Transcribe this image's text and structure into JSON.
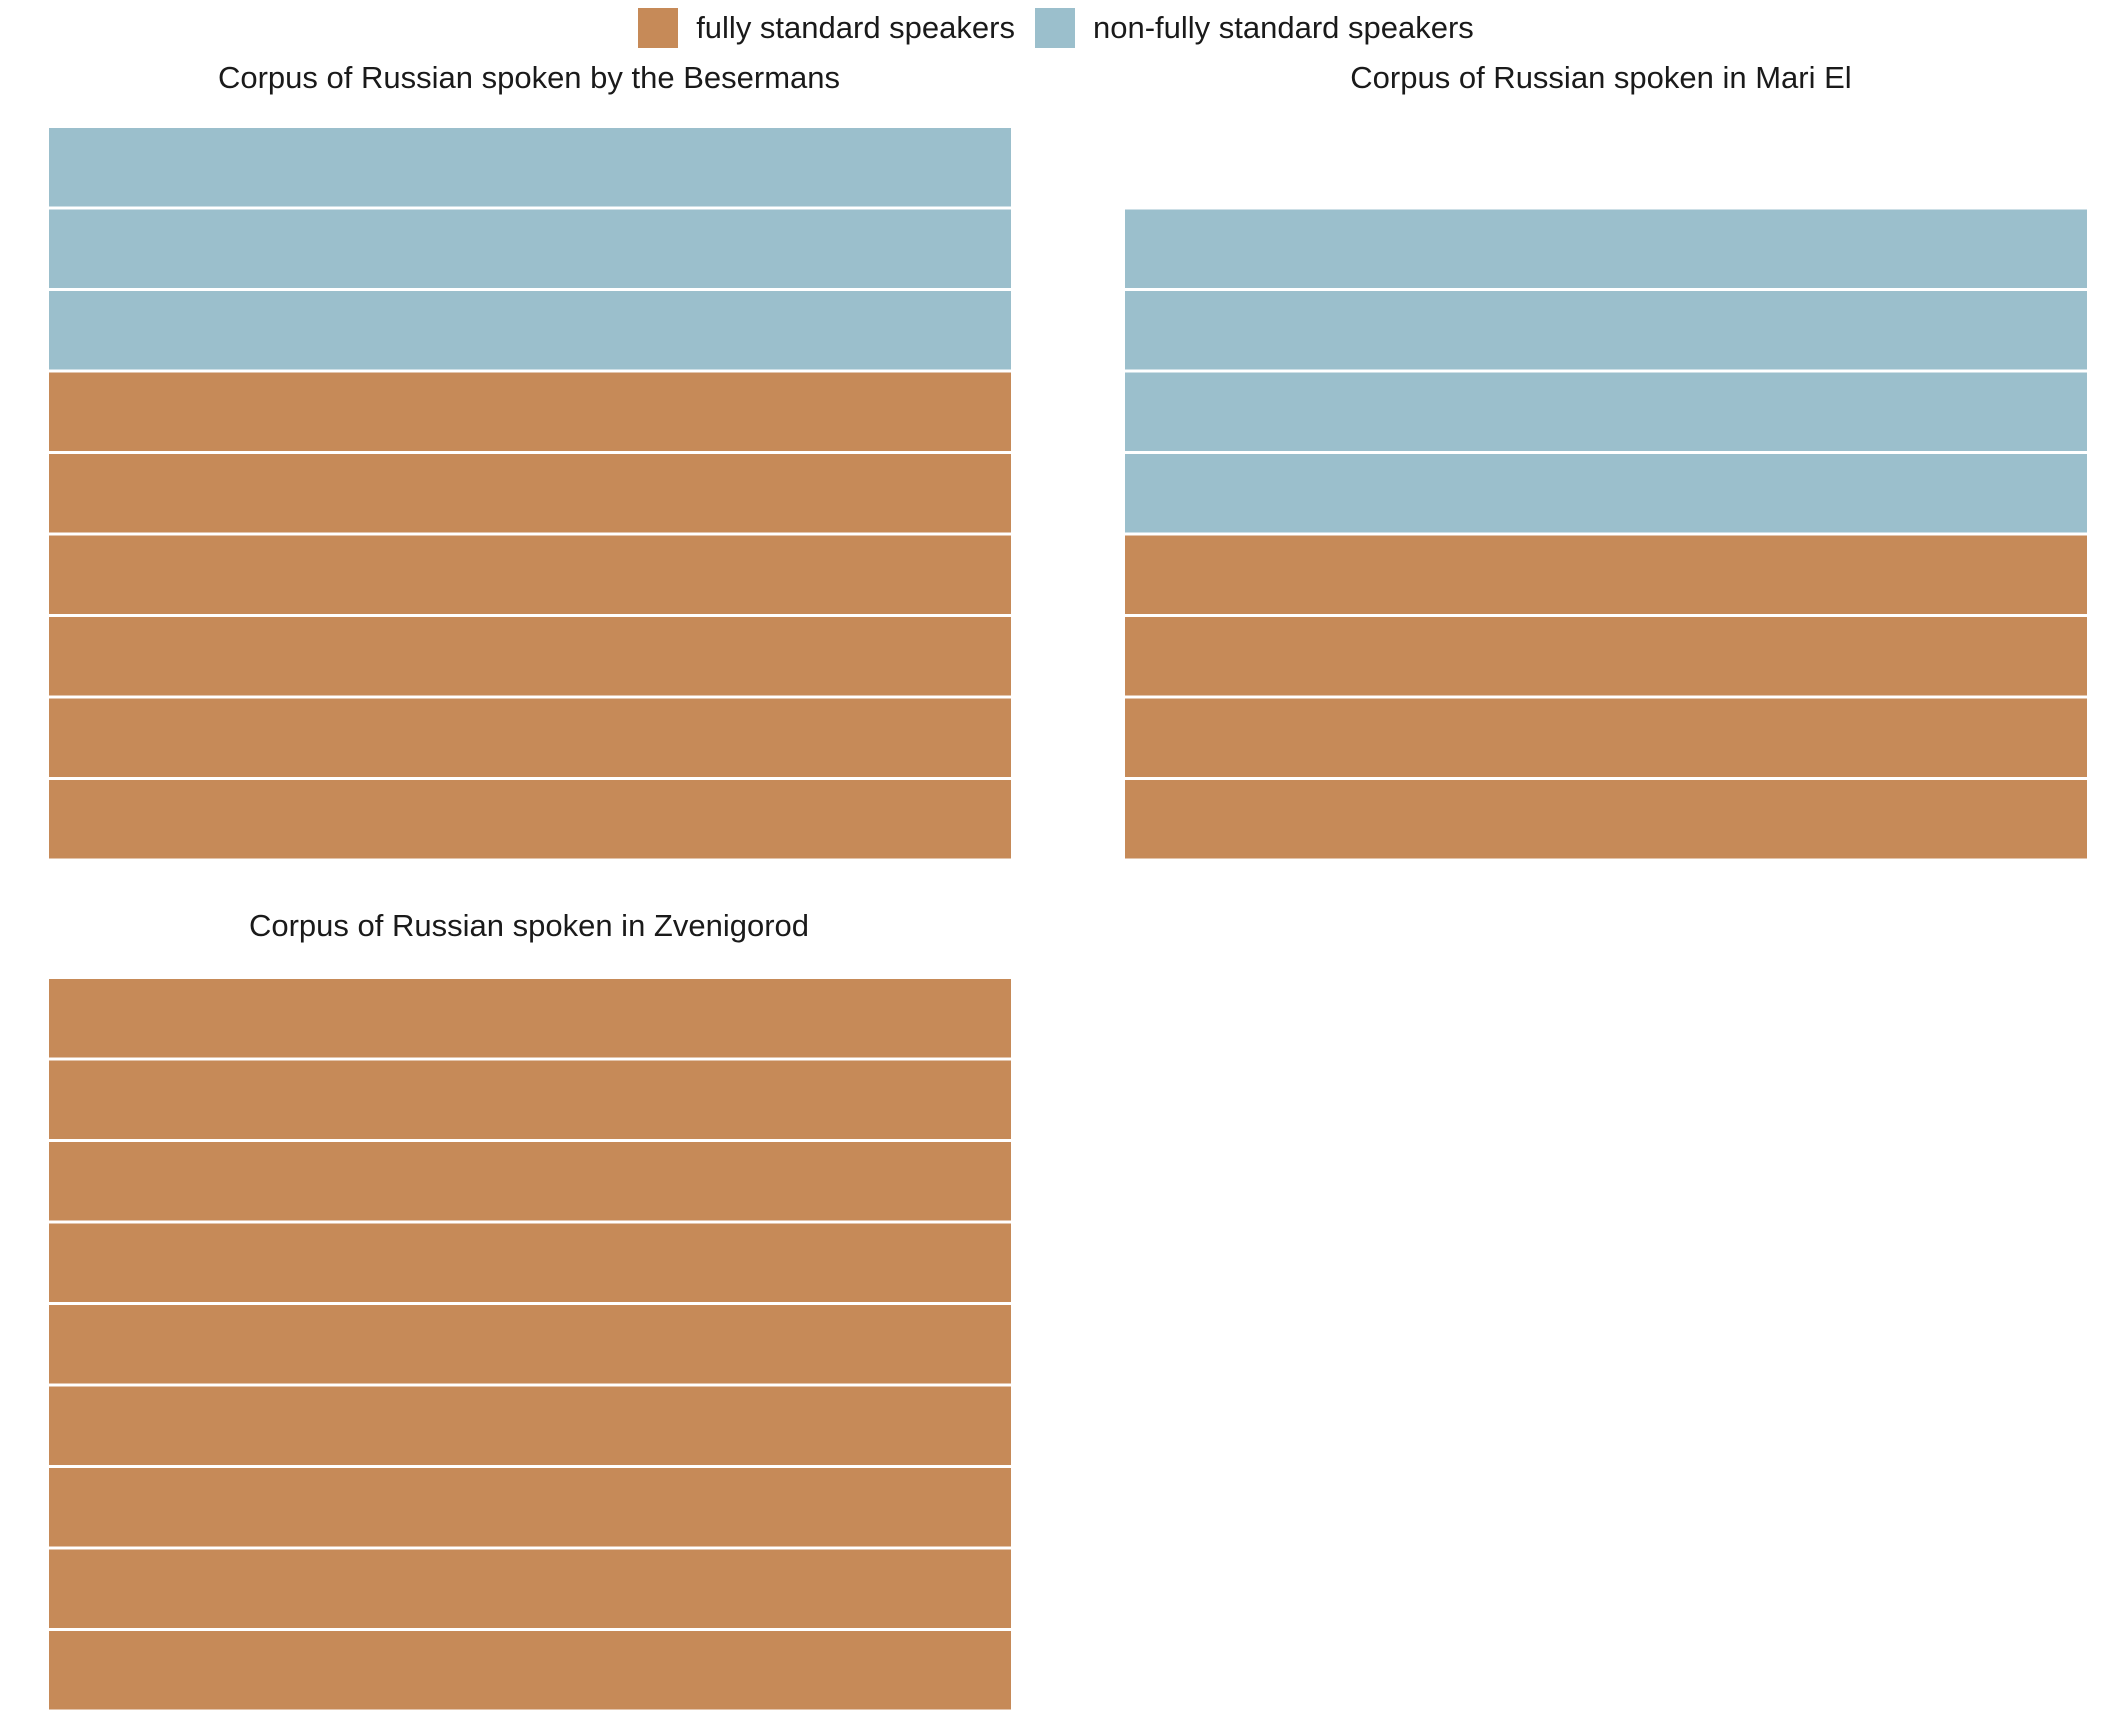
{
  "chart_data": [
    {
      "type": "waffle",
      "title": "Corpus of Russian spoken by the Besermans",
      "categories": [
        "fully standard speakers",
        "non-fully standard speakers"
      ],
      "values": [
        6,
        3
      ]
    },
    {
      "type": "waffle",
      "title": "Corpus of Russian spoken in Mari El",
      "categories": [
        "fully standard speakers",
        "non-fully standard speakers"
      ],
      "values": [
        4,
        4
      ]
    },
    {
      "type": "waffle",
      "title": "Corpus of Russian spoken in Zvenigorod",
      "categories": [
        "fully standard speakers",
        "non-fully standard speakers"
      ],
      "values": [
        9,
        0
      ]
    }
  ],
  "legend": {
    "position": "top",
    "items": [
      {
        "label": "fully standard speakers",
        "color": "#c68a58"
      },
      {
        "label": "non-fully standard speakers",
        "color": "#9bbfcc"
      }
    ]
  },
  "colors": {
    "fully_standard": "#c68a58",
    "non_fully_standard": "#9bbfcc",
    "separator": "#ffffff"
  }
}
